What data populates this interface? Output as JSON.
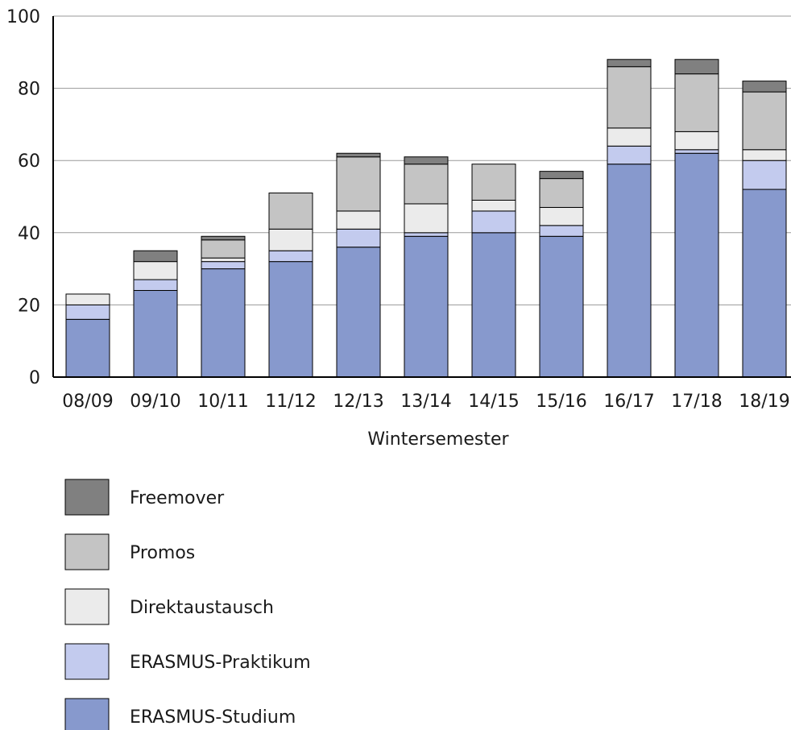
{
  "chart_data": {
    "type": "bar",
    "stacked": true,
    "title": "",
    "xlabel": "Wintersemester",
    "ylabel": "",
    "ylim": [
      0,
      100
    ],
    "yticks": [
      0,
      20,
      40,
      60,
      80,
      100
    ],
    "grid": true,
    "legend_position": "bottom",
    "categories": [
      "08/09",
      "09/10",
      "10/11",
      "11/12",
      "12/13",
      "13/14",
      "14/15",
      "15/16",
      "16/17",
      "17/18",
      "18/19"
    ],
    "series": [
      {
        "name": "ERASMUS-Studium",
        "color": "#8799cd",
        "values": [
          16,
          24,
          30,
          32,
          36,
          39,
          40,
          39,
          59,
          62,
          52
        ]
      },
      {
        "name": "ERASMUS-Praktikum",
        "color": "#c3cbee",
        "values": [
          4,
          3,
          2,
          3,
          5,
          1,
          6,
          3,
          5,
          1,
          8
        ]
      },
      {
        "name": "Direktaustausch",
        "color": "#ebebeb",
        "values": [
          3,
          5,
          1,
          6,
          5,
          8,
          3,
          5,
          5,
          5,
          3
        ]
      },
      {
        "name": "Promos",
        "color": "#c4c4c4",
        "values": [
          0,
          0,
          5,
          10,
          15,
          11,
          10,
          8,
          17,
          16,
          16
        ]
      },
      {
        "name": "Freemover",
        "color": "#808080",
        "values": [
          0,
          3,
          1,
          0,
          1,
          2,
          0,
          2,
          2,
          4,
          3
        ]
      }
    ],
    "legend_order": [
      "Freemover",
      "Promos",
      "Direktaustausch",
      "ERASMUS-Praktikum",
      "ERASMUS-Studium"
    ]
  }
}
